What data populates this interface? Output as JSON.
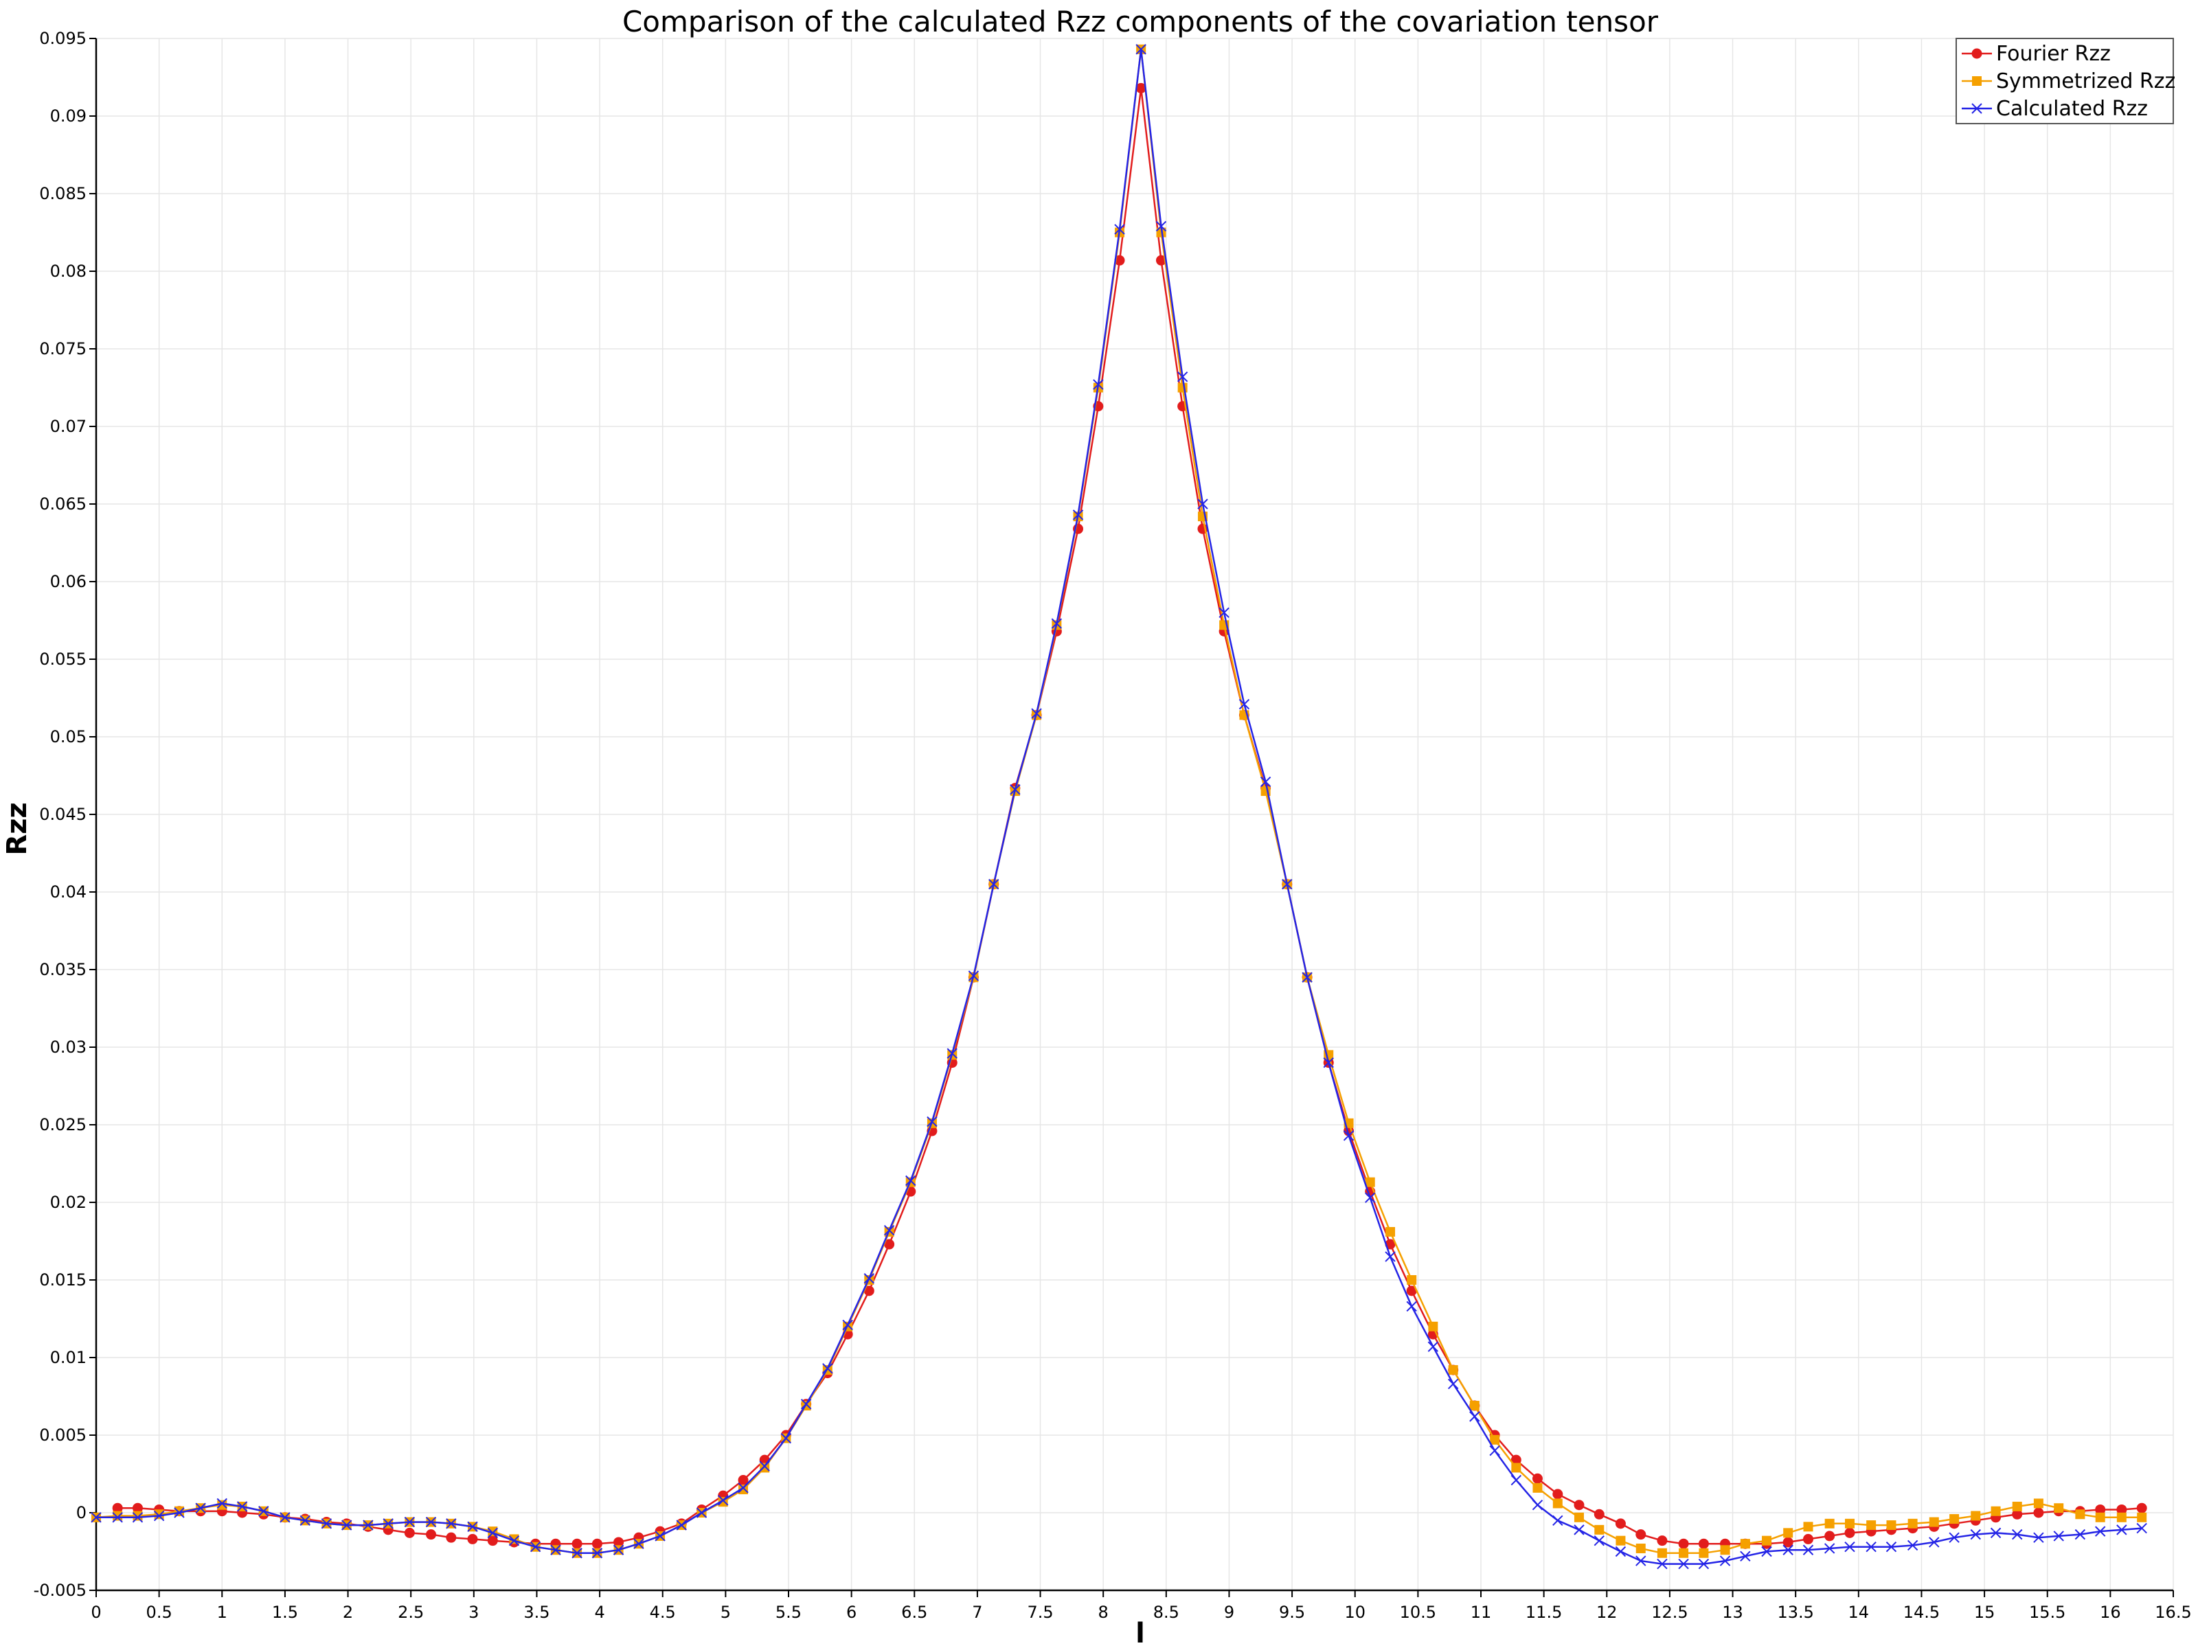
{
  "chart_data": {
    "type": "line",
    "title": "Comparison of the calculated Rzz components of the covariation tensor",
    "xlabel": "l",
    "ylabel": "Rzz",
    "xlim": [
      0,
      16.5
    ],
    "ylim": [
      -0.005,
      0.095
    ],
    "x_ticks": [
      0,
      0.5,
      1,
      1.5,
      2,
      2.5,
      3,
      3.5,
      4,
      4.5,
      5,
      5.5,
      6,
      6.5,
      7,
      7.5,
      8,
      8.5,
      9,
      9.5,
      10,
      10.5,
      11,
      11.5,
      12,
      12.5,
      13,
      13.5,
      14,
      14.5,
      15,
      15.5,
      16,
      16.5
    ],
    "x_tick_labels": [
      "0",
      "0.5",
      "1",
      "1.5",
      "2",
      "2.5",
      "3",
      "3.5",
      "4",
      "4.5",
      "5",
      "5.5",
      "6",
      "6.5",
      "7",
      "7.5",
      "8",
      "8.5",
      "9",
      "9.5",
      "10",
      "10.5",
      "11",
      "11.5",
      "12",
      "12.5",
      "13",
      "13.5",
      "14",
      "14.5",
      "15",
      "15.5",
      "16",
      "16.5"
    ],
    "y_ticks": [
      -0.005,
      0,
      0.005,
      0.01,
      0.015,
      0.02,
      0.025,
      0.03,
      0.035,
      0.04,
      0.045,
      0.05,
      0.055,
      0.06,
      0.065,
      0.07,
      0.075,
      0.08,
      0.085,
      0.09,
      0.095
    ],
    "y_tick_labels": [
      "-0.005",
      "0",
      "0.005",
      "0.01",
      "0.015",
      "0.02",
      "0.025",
      "0.03",
      "0.035",
      "0.04",
      "0.045",
      "0.05",
      "0.055",
      "0.06",
      "0.065",
      "0.07",
      "0.075",
      "0.08",
      "0.085",
      "0.09",
      "0.095"
    ],
    "grid": true,
    "legend_position": "top-right",
    "series": [
      {
        "name": "Fourier Rzz",
        "color": "#e21c1c",
        "marker": "circle",
        "x": [
          0.17,
          0.33,
          0.5,
          0.66,
          0.83,
          1.0,
          1.16,
          1.33,
          1.5,
          1.66,
          1.83,
          1.99,
          2.16,
          2.32,
          2.49,
          2.66,
          2.82,
          2.99,
          3.15,
          3.32,
          3.49,
          3.65,
          3.82,
          3.98,
          4.15,
          4.31,
          4.48,
          4.65,
          4.81,
          4.98,
          5.14,
          5.31,
          5.48,
          5.64,
          5.81,
          5.97,
          6.14,
          6.3,
          6.47,
          6.64,
          6.8,
          6.97,
          7.13,
          7.3,
          7.47,
          7.63,
          7.8,
          7.96,
          8.13,
          8.3,
          8.46,
          8.63,
          8.79,
          8.96,
          9.12,
          9.29,
          9.46,
          9.62,
          9.79,
          9.95,
          10.12,
          10.28,
          10.45,
          10.62,
          10.78,
          10.95,
          11.11,
          11.28,
          11.45,
          11.61,
          11.78,
          11.94,
          12.11,
          12.27,
          12.44,
          12.61,
          12.77,
          12.94,
          13.1,
          13.27,
          13.44,
          13.6,
          13.77,
          13.93,
          14.1,
          14.26,
          14.43,
          14.6,
          14.76,
          14.93,
          15.09,
          15.26,
          15.43,
          15.59,
          15.76,
          15.92,
          16.09,
          16.25
        ],
        "y": [
          0.0003,
          0.0003,
          0.0002,
          0.0001,
          0.0001,
          0.0001,
          0.0,
          -0.0001,
          -0.0003,
          -0.0004,
          -0.0006,
          -0.0007,
          -0.0009,
          -0.0011,
          -0.0013,
          -0.0014,
          -0.0016,
          -0.0017,
          -0.0018,
          -0.0019,
          -0.002,
          -0.002,
          -0.002,
          -0.002,
          -0.0019,
          -0.0016,
          -0.0012,
          -0.0007,
          0.0002,
          0.0011,
          0.0021,
          0.0034,
          0.005,
          0.007,
          0.009,
          0.0115,
          0.0143,
          0.0173,
          0.0207,
          0.0246,
          0.029,
          0.0345,
          0.0405,
          0.0467,
          0.0514,
          0.0568,
          0.0634,
          0.0713,
          0.0807,
          0.0918,
          0.0807,
          0.0713,
          0.0634,
          0.0568,
          0.0514,
          0.0467,
          0.0405,
          0.0345,
          0.029,
          0.0246,
          0.0207,
          0.0173,
          0.0143,
          0.0115,
          0.0092,
          0.0069,
          0.005,
          0.0034,
          0.0022,
          0.0012,
          0.0005,
          -0.0001,
          -0.0007,
          -0.0014,
          -0.0018,
          -0.002,
          -0.002,
          -0.002,
          -0.002,
          -0.002,
          -0.0019,
          -0.0017,
          -0.0015,
          -0.0013,
          -0.0012,
          -0.0011,
          -0.001,
          -0.0009,
          -0.0007,
          -0.0005,
          -0.0003,
          -0.0001,
          0.0,
          0.0001,
          0.0001,
          0.0002,
          0.0002,
          0.0003
        ]
      },
      {
        "name": "Symmetrized Rzz",
        "color": "#f5a000",
        "marker": "square",
        "x": [
          0.0,
          0.17,
          0.33,
          0.5,
          0.66,
          0.83,
          1.0,
          1.16,
          1.33,
          1.5,
          1.66,
          1.83,
          1.99,
          2.16,
          2.32,
          2.49,
          2.66,
          2.82,
          2.99,
          3.15,
          3.32,
          3.49,
          3.65,
          3.82,
          3.98,
          4.15,
          4.31,
          4.48,
          4.65,
          4.81,
          4.98,
          5.14,
          5.31,
          5.48,
          5.64,
          5.81,
          5.97,
          6.14,
          6.3,
          6.47,
          6.64,
          6.8,
          6.97,
          7.13,
          7.3,
          7.47,
          7.63,
          7.8,
          7.96,
          8.13,
          8.3,
          8.46,
          8.63,
          8.79,
          8.96,
          9.12,
          9.29,
          9.46,
          9.62,
          9.79,
          9.95,
          10.12,
          10.28,
          10.45,
          10.62,
          10.78,
          10.95,
          11.11,
          11.28,
          11.45,
          11.61,
          11.78,
          11.94,
          12.11,
          12.27,
          12.44,
          12.61,
          12.77,
          12.94,
          13.1,
          13.27,
          13.44,
          13.6,
          13.77,
          13.93,
          14.1,
          14.26,
          14.43,
          14.6,
          14.76,
          14.93,
          15.09,
          15.26,
          15.43,
          15.59,
          15.76,
          15.92,
          16.09,
          16.25
        ],
        "y": [
          -0.0003,
          -0.0002,
          -0.0002,
          -0.0001,
          0.0001,
          0.0003,
          0.0005,
          0.0004,
          0.0001,
          -0.0003,
          -0.0005,
          -0.0007,
          -0.0008,
          -0.0008,
          -0.0007,
          -0.0006,
          -0.0006,
          -0.0007,
          -0.0009,
          -0.0012,
          -0.0017,
          -0.0022,
          -0.0024,
          -0.0026,
          -0.0026,
          -0.0024,
          -0.002,
          -0.0015,
          -0.0008,
          0.0,
          0.0007,
          0.0015,
          0.0029,
          0.0048,
          0.0069,
          0.0092,
          0.012,
          0.015,
          0.0181,
          0.0213,
          0.0251,
          0.0295,
          0.0345,
          0.0405,
          0.0465,
          0.0514,
          0.0572,
          0.0642,
          0.0725,
          0.0825,
          0.0943,
          0.0825,
          0.0725,
          0.0642,
          0.0572,
          0.0514,
          0.0465,
          0.0405,
          0.0345,
          0.0295,
          0.0251,
          0.0213,
          0.0181,
          0.015,
          0.012,
          0.0092,
          0.0069,
          0.0047,
          0.0029,
          0.0016,
          0.0006,
          -0.0003,
          -0.0011,
          -0.0018,
          -0.0023,
          -0.0026,
          -0.0026,
          -0.0026,
          -0.0024,
          -0.002,
          -0.0018,
          -0.0013,
          -0.0009,
          -0.0007,
          -0.0007,
          -0.0008,
          -0.0008,
          -0.0007,
          -0.0006,
          -0.0004,
          -0.0002,
          0.0001,
          0.0004,
          0.0006,
          0.0003,
          -0.0001,
          -0.0003,
          -0.0003,
          -0.0003
        ]
      },
      {
        "name": "Calculated Rzz",
        "color": "#2424e6",
        "marker": "x",
        "x": [
          0.0,
          0.17,
          0.33,
          0.5,
          0.66,
          0.83,
          1.0,
          1.16,
          1.33,
          1.5,
          1.66,
          1.83,
          1.99,
          2.16,
          2.32,
          2.49,
          2.66,
          2.82,
          2.99,
          3.15,
          3.32,
          3.49,
          3.65,
          3.82,
          3.98,
          4.15,
          4.31,
          4.48,
          4.65,
          4.81,
          4.98,
          5.14,
          5.31,
          5.48,
          5.64,
          5.81,
          5.97,
          6.14,
          6.3,
          6.47,
          6.64,
          6.8,
          6.97,
          7.13,
          7.3,
          7.47,
          7.63,
          7.8,
          7.96,
          8.13,
          8.3,
          8.46,
          8.63,
          8.79,
          8.96,
          9.12,
          9.29,
          9.46,
          9.62,
          9.79,
          9.95,
          10.12,
          10.28,
          10.45,
          10.62,
          10.78,
          10.95,
          11.11,
          11.28,
          11.45,
          11.61,
          11.78,
          11.94,
          12.11,
          12.27,
          12.44,
          12.61,
          12.77,
          12.94,
          13.1,
          13.27,
          13.44,
          13.6,
          13.77,
          13.93,
          14.1,
          14.26,
          14.43,
          14.6,
          14.76,
          14.93,
          15.09,
          15.26,
          15.43,
          15.59,
          15.76,
          15.92,
          16.09,
          16.25
        ],
        "y": [
          -0.0003,
          -0.0003,
          -0.0003,
          -0.0002,
          0.0,
          0.0003,
          0.0006,
          0.0004,
          0.0001,
          -0.0003,
          -0.0005,
          -0.0007,
          -0.0008,
          -0.0008,
          -0.0007,
          -0.0006,
          -0.0006,
          -0.0007,
          -0.0009,
          -0.0013,
          -0.0018,
          -0.0022,
          -0.0024,
          -0.0026,
          -0.0026,
          -0.0024,
          -0.002,
          -0.0015,
          -0.0008,
          0.0,
          0.0008,
          0.0016,
          0.003,
          0.0048,
          0.007,
          0.0093,
          0.0121,
          0.0151,
          0.0182,
          0.0214,
          0.0252,
          0.0296,
          0.0346,
          0.0405,
          0.0466,
          0.0515,
          0.0573,
          0.0643,
          0.0727,
          0.0827,
          0.0943,
          0.0829,
          0.0732,
          0.065,
          0.058,
          0.0521,
          0.0471,
          0.0405,
          0.0345,
          0.029,
          0.0243,
          0.0203,
          0.0165,
          0.0133,
          0.0107,
          0.0083,
          0.0062,
          0.004,
          0.0021,
          0.0005,
          -0.0005,
          -0.0011,
          -0.0018,
          -0.0025,
          -0.0031,
          -0.0033,
          -0.0033,
          -0.0033,
          -0.0031,
          -0.0028,
          -0.0025,
          -0.0024,
          -0.0024,
          -0.0023,
          -0.0022,
          -0.0022,
          -0.0022,
          -0.0021,
          -0.0019,
          -0.0016,
          -0.0014,
          -0.0013,
          -0.0014,
          -0.0016,
          -0.0015,
          -0.0014,
          -0.0012,
          -0.0011,
          -0.001
        ]
      }
    ]
  }
}
